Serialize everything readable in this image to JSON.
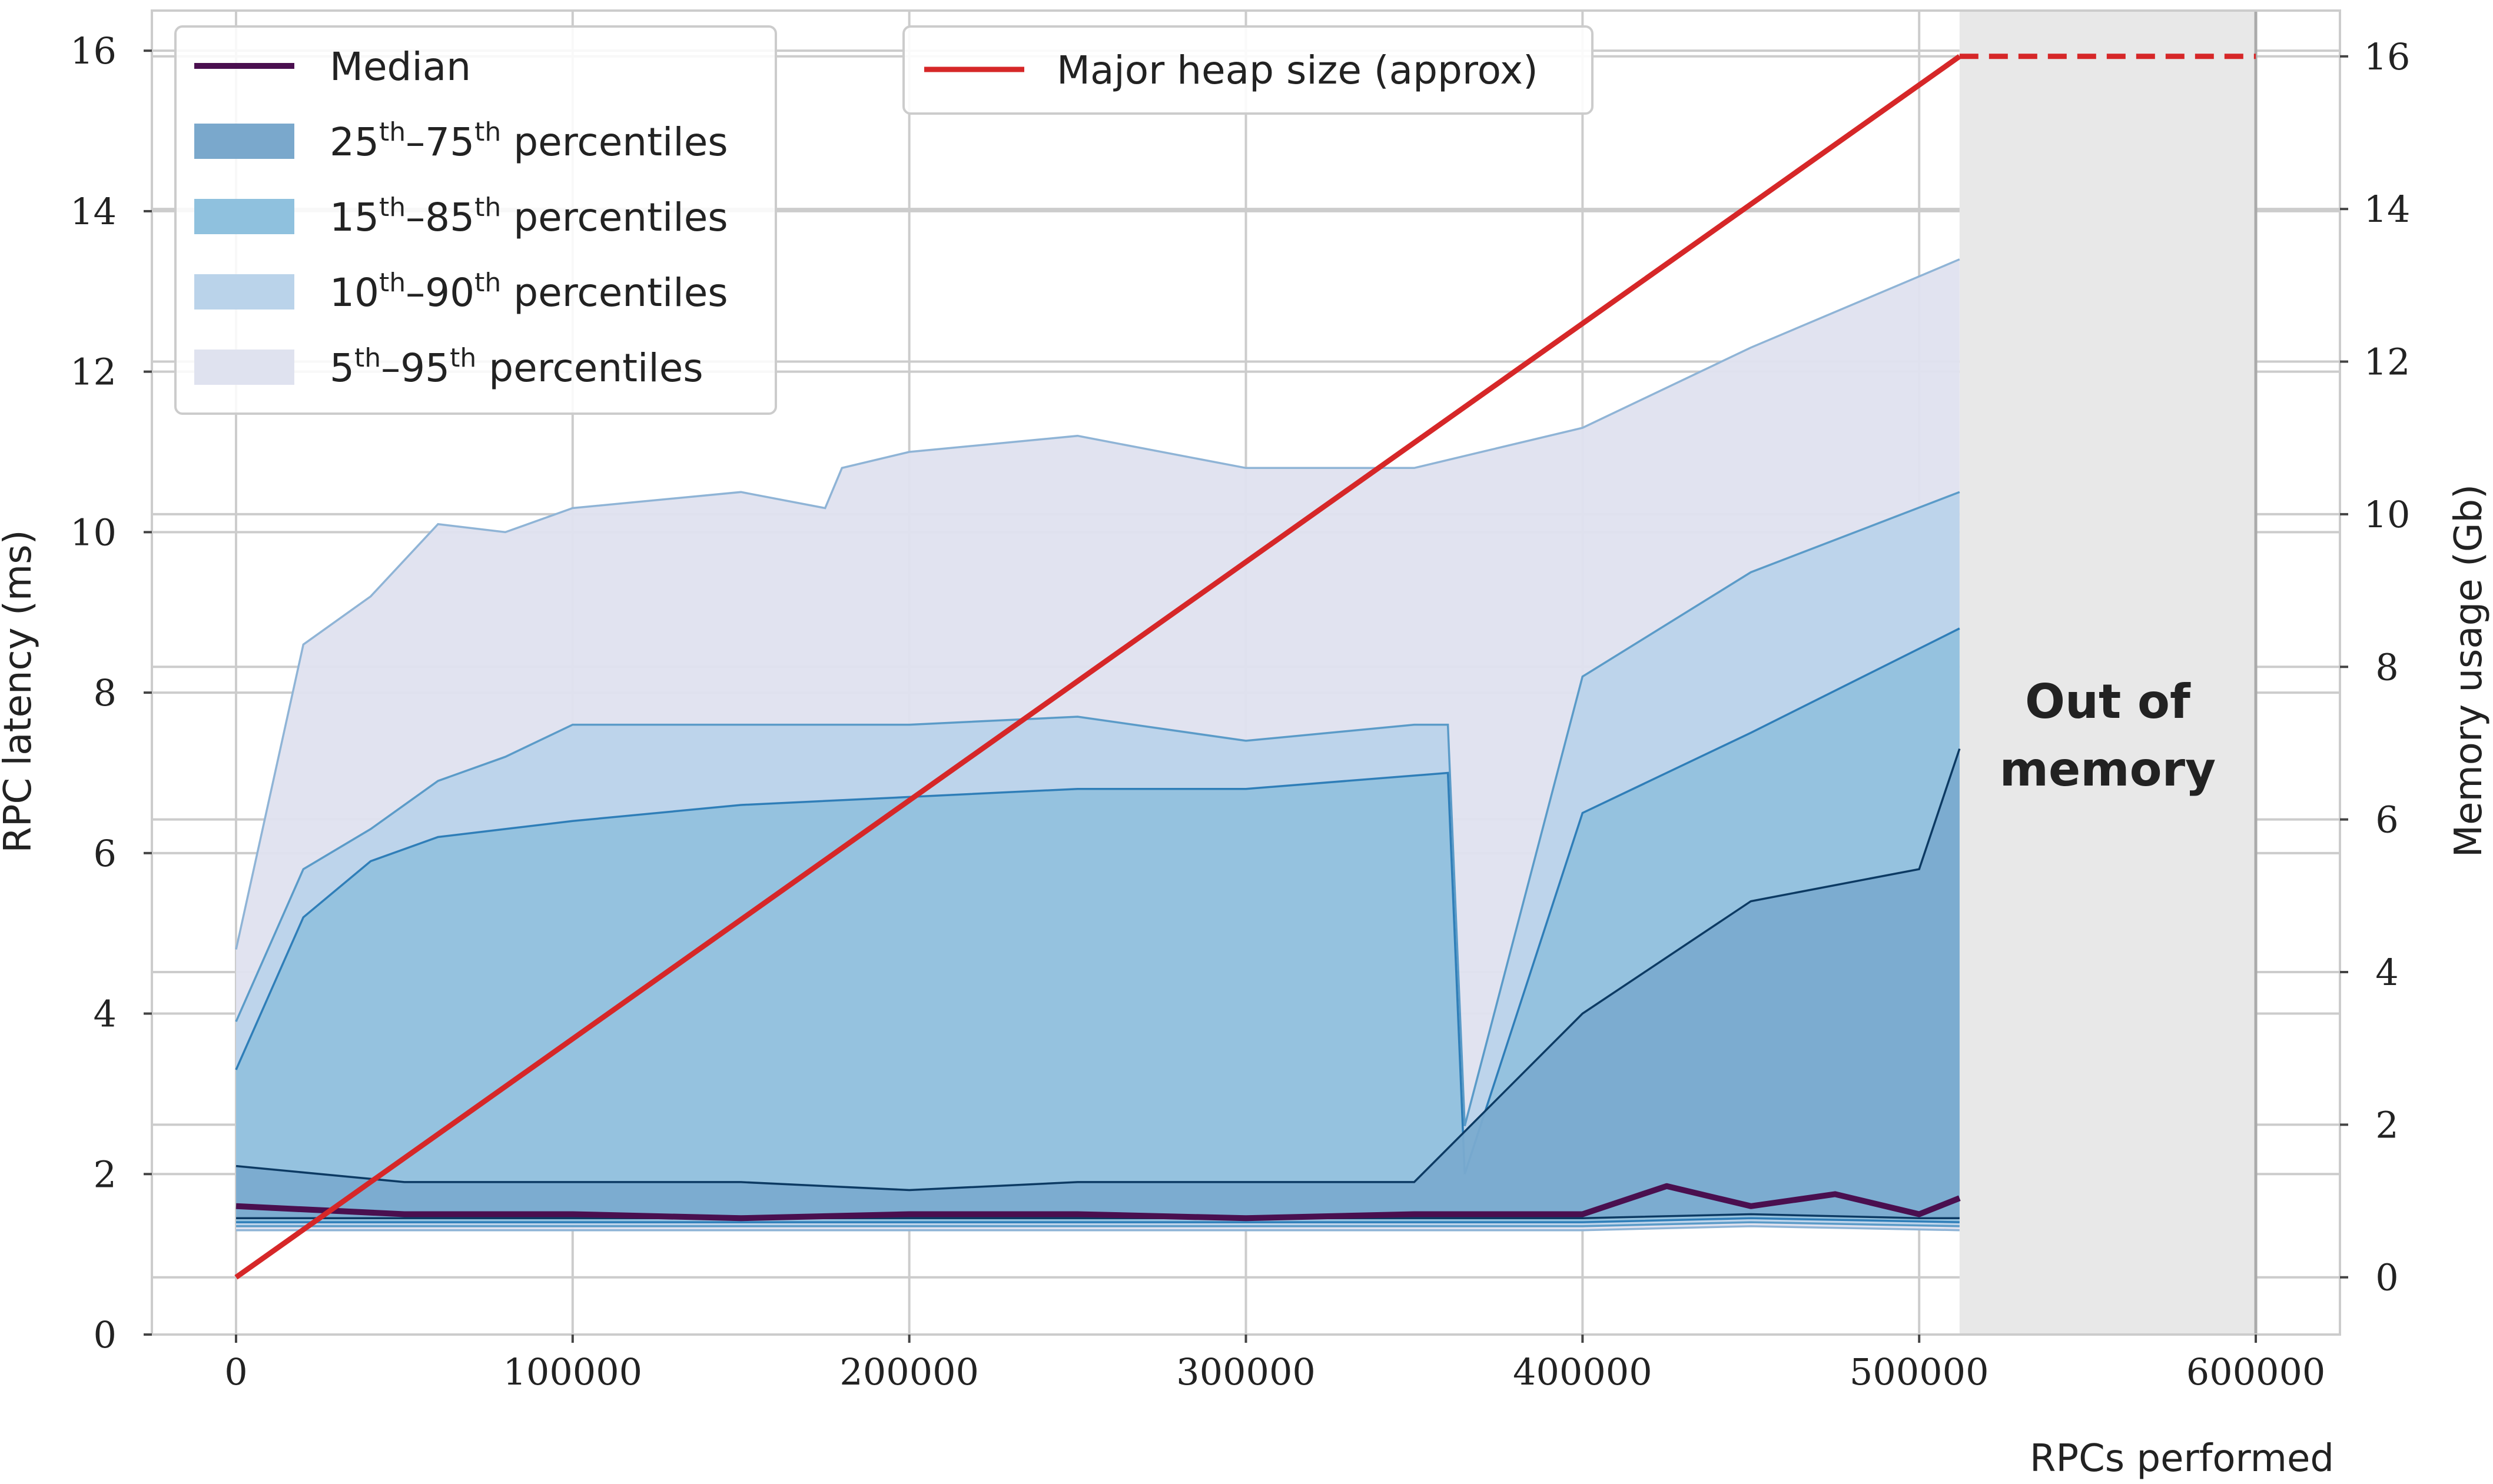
{
  "chart_data": {
    "type": "area",
    "xlabel": "RPCs performed",
    "ylabel": "RPC latency (ms)",
    "y2label": "Memory usage (Gb)",
    "xlim": [
      -25000,
      625000
    ],
    "ylim": [
      0,
      16.5
    ],
    "y2lim": [
      -0.75,
      16.6
    ],
    "x_ticks": [
      0,
      100000,
      200000,
      300000,
      400000,
      500000,
      600000
    ],
    "y_ticks": [
      0,
      2,
      4,
      6,
      8,
      10,
      12,
      14,
      16
    ],
    "y2_ticks": [
      0,
      2,
      4,
      6,
      8,
      10,
      12,
      14,
      16
    ],
    "grid": true,
    "legend_left": {
      "position": "top-left",
      "entries": [
        {
          "label": "Median",
          "color": "#4a0f4f",
          "kind": "line"
        },
        {
          "label_base": "25",
          "label_mid": "–75",
          "sup": "th",
          "label_tail": " percentiles",
          "color": "#7aa8cc",
          "kind": "patch"
        },
        {
          "label_base": "15",
          "label_mid": "–85",
          "sup": "th",
          "label_tail": " percentiles",
          "color": "#8fc1de",
          "kind": "patch"
        },
        {
          "label_base": "10",
          "label_mid": "–90",
          "sup": "th",
          "label_tail": " percentiles",
          "color": "#bad3ea",
          "kind": "patch"
        },
        {
          "label_base": "5",
          "label_mid": "–95",
          "sup": "th",
          "label_tail": " percentiles",
          "color": "#dfe2ef",
          "kind": "patch"
        }
      ]
    },
    "legend_right": {
      "position": "top-center",
      "entries": [
        {
          "label": "Major heap size (approx)",
          "color": "#d62728",
          "kind": "line"
        }
      ]
    },
    "out_of_memory": {
      "x_range": [
        512000,
        600000
      ],
      "label_line1": "Out of",
      "label_line2": "memory",
      "color": "#e8e8e8"
    },
    "heap_size": {
      "axis": "right",
      "solid": [
        [
          0,
          0
        ],
        [
          512000,
          16
        ]
      ],
      "dashed": [
        [
          512000,
          16
        ],
        [
          600000,
          16
        ]
      ],
      "color": "#d62728"
    },
    "series": [
      {
        "name": "Median",
        "x": [
          0,
          50000,
          100000,
          150000,
          200000,
          250000,
          300000,
          350000,
          400000,
          425000,
          450000,
          475000,
          500000,
          512000
        ],
        "values": [
          1.6,
          1.5,
          1.5,
          1.45,
          1.5,
          1.5,
          1.45,
          1.5,
          1.5,
          1.85,
          1.6,
          1.75,
          1.5,
          1.7
        ]
      },
      {
        "name": "5th–95th",
        "x": [
          0,
          20000,
          40000,
          60000,
          80000,
          100000,
          150000,
          175000,
          180000,
          200000,
          250000,
          300000,
          350000,
          400000,
          450000,
          512000
        ],
        "lower": [
          1.3,
          1.3,
          1.3,
          1.3,
          1.3,
          1.3,
          1.3,
          1.3,
          1.3,
          1.3,
          1.3,
          1.3,
          1.3,
          1.3,
          1.35,
          1.3
        ],
        "upper": [
          4.8,
          8.6,
          9.2,
          10.1,
          10.0,
          10.3,
          10.5,
          10.3,
          10.8,
          11.0,
          11.2,
          10.8,
          10.8,
          11.3,
          12.3,
          13.4
        ]
      },
      {
        "name": "10th–90th",
        "x": [
          0,
          20000,
          40000,
          60000,
          80000,
          100000,
          150000,
          200000,
          250000,
          300000,
          350000,
          360000,
          365000,
          400000,
          450000,
          512000
        ],
        "lower": [
          1.35,
          1.35,
          1.35,
          1.35,
          1.35,
          1.35,
          1.35,
          1.35,
          1.35,
          1.35,
          1.35,
          1.35,
          1.35,
          1.35,
          1.4,
          1.35
        ],
        "upper": [
          3.9,
          5.8,
          6.3,
          6.9,
          7.2,
          7.6,
          7.6,
          7.6,
          7.7,
          7.4,
          7.6,
          7.6,
          2.6,
          8.2,
          9.5,
          10.5
        ]
      },
      {
        "name": "15th–85th",
        "x": [
          0,
          20000,
          40000,
          60000,
          80000,
          100000,
          150000,
          200000,
          250000,
          300000,
          360000,
          365000,
          400000,
          450000,
          512000
        ],
        "lower": [
          1.4,
          1.4,
          1.4,
          1.4,
          1.4,
          1.4,
          1.4,
          1.4,
          1.4,
          1.4,
          1.4,
          1.4,
          1.4,
          1.45,
          1.4
        ],
        "upper": [
          3.3,
          5.2,
          5.9,
          6.2,
          6.3,
          6.4,
          6.6,
          6.7,
          6.8,
          6.8,
          7.0,
          2.0,
          6.5,
          7.5,
          8.8
        ]
      },
      {
        "name": "25th–75th",
        "x": [
          0,
          50000,
          100000,
          150000,
          200000,
          250000,
          300000,
          350000,
          400000,
          450000,
          500000,
          512000
        ],
        "lower": [
          1.45,
          1.45,
          1.45,
          1.45,
          1.45,
          1.45,
          1.45,
          1.45,
          1.45,
          1.5,
          1.45,
          1.45
        ],
        "upper": [
          2.1,
          1.9,
          1.9,
          1.9,
          1.8,
          1.9,
          1.9,
          1.9,
          4.0,
          5.4,
          5.8,
          7.3
        ]
      }
    ]
  }
}
